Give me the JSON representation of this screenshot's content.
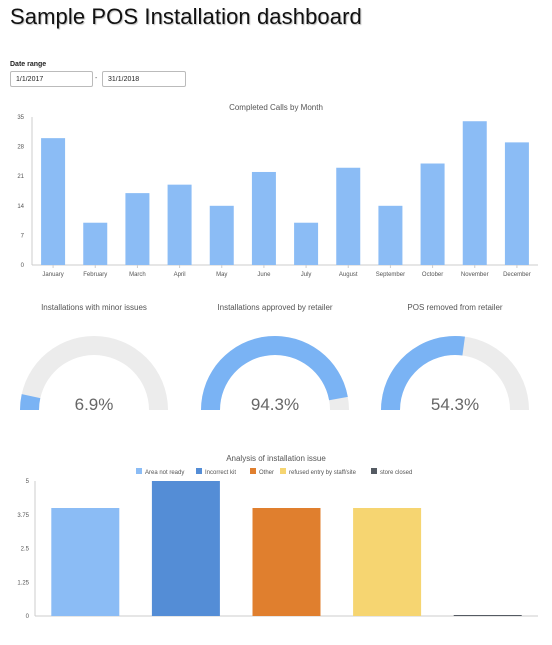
{
  "page": {
    "title": "Sample POS Installation dashboard"
  },
  "date_range": {
    "label": "Date range",
    "start": "1/1/2017",
    "separator": "-",
    "end": "31/1/2018"
  },
  "colors": {
    "bar_blue": "#8bbcf5",
    "gauge_blue": "#7ab3f4",
    "gauge_track": "#ececec",
    "axis": "#cccccc"
  },
  "chart_data": [
    {
      "type": "bar",
      "title": "Completed Calls by Month",
      "categories": [
        "January",
        "February",
        "March",
        "April",
        "May",
        "June",
        "July",
        "August",
        "September",
        "October",
        "November",
        "December"
      ],
      "values": [
        30,
        10,
        17,
        19,
        14,
        22,
        10,
        23,
        14,
        24,
        34,
        29
      ],
      "yticks": [
        0,
        7,
        14,
        21,
        28,
        35
      ],
      "ylim": [
        0,
        35
      ],
      "color": "#8bbcf5",
      "xlabel": "",
      "ylabel": ""
    },
    {
      "type": "gauge",
      "title": "Installations with minor issues",
      "value": 6.9,
      "label": "6.9%"
    },
    {
      "type": "gauge",
      "title": "Installations approved by retailer",
      "value": 94.3,
      "label": "94.3%"
    },
    {
      "type": "gauge",
      "title": "POS removed from retailer",
      "value": 54.3,
      "label": "54.3%"
    },
    {
      "type": "bar",
      "title": "Analysis of installation issue",
      "legend_position": "top",
      "series": [
        {
          "name": "Area not ready",
          "value": 4,
          "color": "#8bbcf5"
        },
        {
          "name": "Incorrect kit",
          "value": 5,
          "color": "#548dd6"
        },
        {
          "name": "Other",
          "value": 4,
          "color": "#e07f2e"
        },
        {
          "name": "refused entry by staff/site",
          "value": 4,
          "color": "#f6d571"
        },
        {
          "name": "store closed",
          "value": 0,
          "color": "#555b63"
        }
      ],
      "yticks": [
        "0",
        "1.25",
        "2.5",
        "3.75",
        "5"
      ],
      "ylim": [
        0,
        5
      ],
      "xlabel": "",
      "ylabel": ""
    }
  ]
}
